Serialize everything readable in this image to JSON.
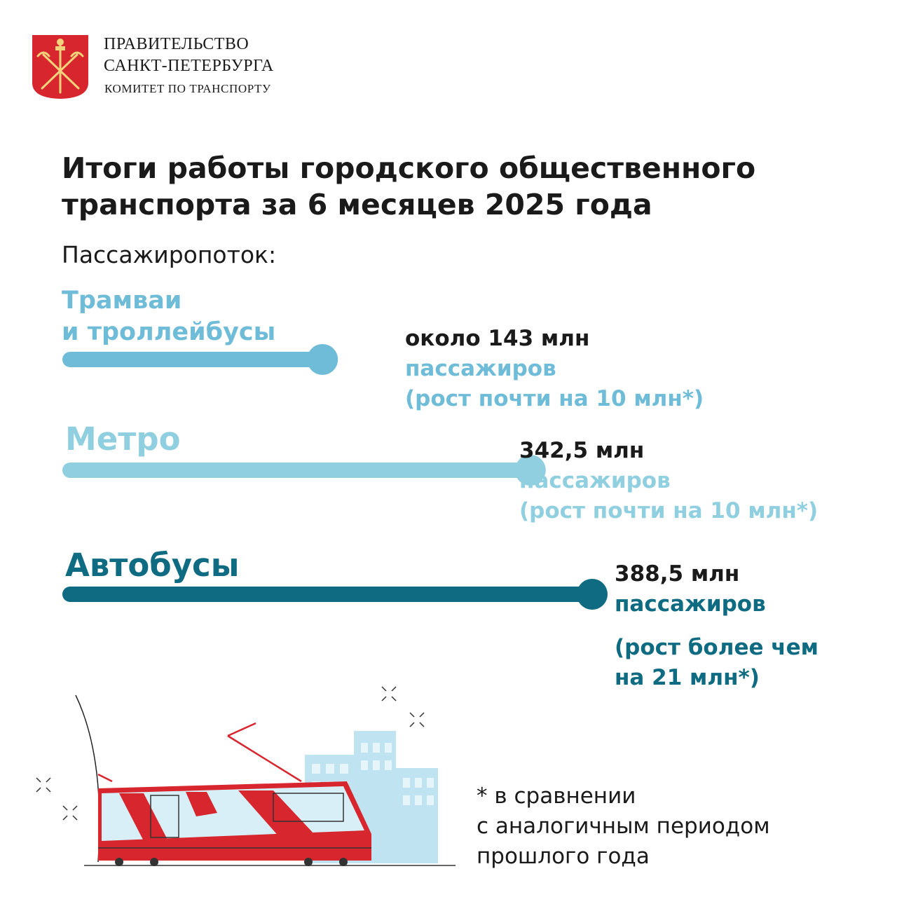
{
  "header": {
    "org_line1": "ПРАВИТЕЛЬСТВО",
    "org_line2": "САНКТ-ПЕТЕРБУРГА",
    "org_line3": "КОМИТЕТ ПО ТРАНСПОРТУ",
    "emblem_icon": "spb-coat-of-arms-icon"
  },
  "colors": {
    "tram": "#6fbcd8",
    "metro": "#8fcfe0",
    "bus": "#0e6b82",
    "emblem_red": "#d7262d",
    "emblem_gold": "#e8c15a"
  },
  "chart_data": {
    "type": "bar",
    "title_lines": [
      "Итоги работы городского общественного",
      "транспорта за 6 месяцев 2025 года"
    ],
    "subtitle": "Пассажиропоток:",
    "categories": [
      "Трамваи и троллейбусы",
      "Метро",
      "Автобусы"
    ],
    "category_label_lines": [
      [
        "Трамваи",
        "и троллейбусы"
      ],
      [
        "Метро"
      ],
      [
        "Автобусы"
      ]
    ],
    "values": [
      143,
      342.5,
      388.5
    ],
    "unit": "млн пассажиров",
    "value_labels": [
      [
        "около 143 млн",
        "пассажиров",
        "(рост почти на 10 млн*)"
      ],
      [
        "342,5 млн",
        "пассажиров",
        "(рост почти на 10 млн*)"
      ],
      [
        "388,5 млн",
        "пассажиров",
        "(рост более чем",
        "на 21 млн*)"
      ]
    ],
    "orientation": "horizontal",
    "grid": false,
    "legend": "none"
  },
  "footnote": [
    "* в сравнении",
    "с аналогичным периодом",
    "прошлого года"
  ],
  "illustration_icon": "tram-and-buildings-icon"
}
